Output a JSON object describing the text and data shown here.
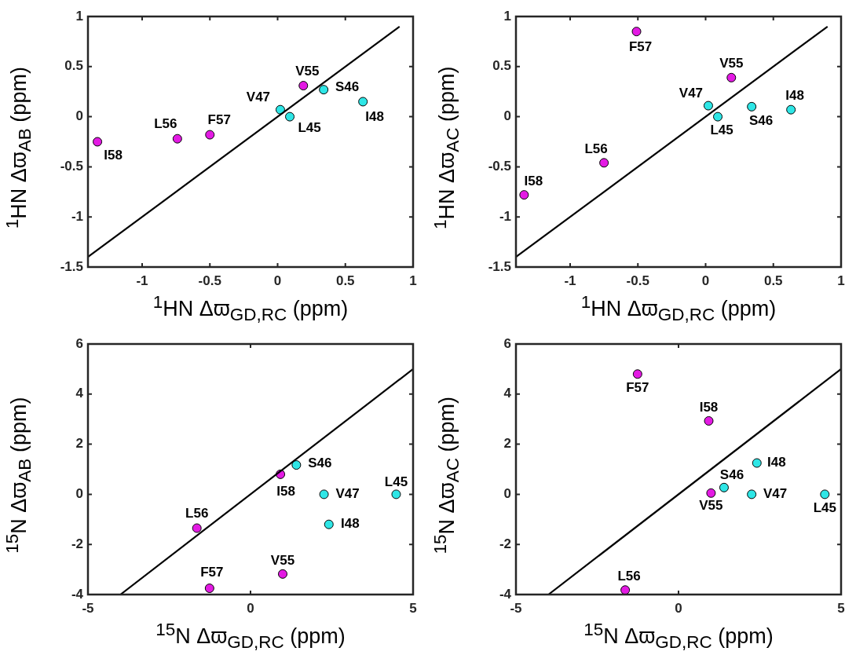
{
  "chart_data": [
    {
      "type": "scatter",
      "xlabel": "$^{1}$HN Δϖ$_{GD,RC}$ (ppm)",
      "ylabel": "$^{1}$HN Δϖ$_{AB}$ (ppm)",
      "xlim": [
        -1.4,
        1
      ],
      "xticks": [
        -1,
        -0.5,
        0,
        0.5,
        1
      ],
      "ylim": [
        -1.5,
        1
      ],
      "yticks": [
        -1.5,
        -1,
        -0.5,
        0,
        0.5,
        1
      ],
      "series": [
        {
          "marker": "circle",
          "color": "#2ee6e6",
          "x": [
            0.09,
            0.34,
            0.02,
            0.63
          ],
          "values": [
            0,
            0.27,
            0.07,
            0.15
          ]
        },
        {
          "marker": "circle",
          "color": "#e31ae3",
          "x": [
            0.19,
            -0.74,
            -0.5,
            -1.33
          ],
          "values": [
            0.31,
            -0.22,
            -0.18,
            -0.25
          ]
        },
        {
          "type": "line",
          "marker": "none",
          "color": "#000000",
          "x": [
            -1.4,
            0.9
          ],
          "values": [
            -1.4,
            0.9
          ]
        }
      ],
      "annotations": [
        {
          "text": "L45",
          "x": 0.09,
          "y": 0
        },
        {
          "text": "S46",
          "x": 0.34,
          "y": 0.27
        },
        {
          "text": "V47",
          "x": 0.02,
          "y": 0.07
        },
        {
          "text": "I48",
          "x": 0.63,
          "y": 0.15
        },
        {
          "text": "V55",
          "x": 0.19,
          "y": 0.31
        },
        {
          "text": "L56",
          "x": -0.74,
          "y": -0.22
        },
        {
          "text": "F57",
          "x": -0.5,
          "y": -0.18
        },
        {
          "text": "I58",
          "x": -1.33,
          "y": -0.25
        }
      ]
    },
    {
      "type": "scatter",
      "xlabel": "$^{1}$HN Δϖ$_{GD,RC}$ (ppm)",
      "ylabel": "$^{1}$HN Δϖ$_{AC}$ (ppm)",
      "xlim": [
        -1.4,
        1
      ],
      "xticks": [
        -1,
        -0.5,
        0,
        0.5,
        1
      ],
      "ylim": [
        -1.5,
        1
      ],
      "yticks": [
        -1.5,
        -1,
        -0.5,
        0,
        0.5,
        1
      ],
      "series": [
        {
          "marker": "circle",
          "color": "#2ee6e6",
          "x": [
            0.09,
            0.34,
            0.02,
            0.63
          ],
          "values": [
            0,
            0.1,
            0.11,
            0.07
          ]
        },
        {
          "marker": "circle",
          "color": "#e31ae3",
          "x": [
            0.19,
            -0.75,
            -0.51,
            -1.34
          ],
          "values": [
            0.39,
            -0.46,
            0.85,
            -0.78
          ]
        },
        {
          "type": "line",
          "marker": "none",
          "color": "#000000",
          "x": [
            -1.4,
            0.9
          ],
          "values": [
            -1.4,
            0.9
          ]
        }
      ],
      "annotations": [
        {
          "text": "L45",
          "x": 0.09,
          "y": 0
        },
        {
          "text": "S46",
          "x": 0.34,
          "y": 0.1
        },
        {
          "text": "V47",
          "x": 0.02,
          "y": 0.11
        },
        {
          "text": "I48",
          "x": 0.63,
          "y": 0.07
        },
        {
          "text": "V55",
          "x": 0.19,
          "y": 0.39
        },
        {
          "text": "L56",
          "x": -0.75,
          "y": -0.46
        },
        {
          "text": "F57",
          "x": -0.51,
          "y": 0.85
        },
        {
          "text": "I58",
          "x": -1.34,
          "y": -0.78
        }
      ]
    },
    {
      "type": "scatter",
      "xlabel": "$^{15}$N Δϖ$_{GD,RC}$ (ppm)",
      "ylabel": "$^{15}$N Δϖ$_{AB}$ (ppm)",
      "xlim": [
        -5,
        5
      ],
      "xticks": [
        -5,
        0,
        5
      ],
      "ylim": [
        -4,
        6
      ],
      "yticks": [
        -4,
        -2,
        0,
        2,
        4,
        6
      ],
      "series": [
        {
          "marker": "circle",
          "color": "#2ee6e6",
          "x": [
            4.48,
            1.41,
            2.26,
            2.41
          ],
          "values": [
            0,
            1.17,
            0,
            -1.2
          ]
        },
        {
          "marker": "circle",
          "color": "#e31ae3",
          "x": [
            0.99,
            -1.65,
            -1.26,
            0.92
          ],
          "values": [
            -3.18,
            -1.35,
            -3.75,
            0.8
          ]
        },
        {
          "type": "line",
          "marker": "none",
          "color": "#000000",
          "x": [
            -4,
            5
          ],
          "values": [
            -4,
            5
          ]
        }
      ],
      "annotations": [
        {
          "text": "L45",
          "x": 4.48,
          "y": 0
        },
        {
          "text": "S46",
          "x": 1.41,
          "y": 1.17
        },
        {
          "text": "V47",
          "x": 2.26,
          "y": 0
        },
        {
          "text": "I48",
          "x": 2.41,
          "y": -1.2
        },
        {
          "text": "V55",
          "x": 0.99,
          "y": -3.18
        },
        {
          "text": "L56",
          "x": -1.65,
          "y": -1.35
        },
        {
          "text": "F57",
          "x": -1.26,
          "y": -3.75
        },
        {
          "text": "I58",
          "x": 0.92,
          "y": 0.8
        }
      ]
    },
    {
      "type": "scatter",
      "xlabel": "$^{15}$N Δϖ$_{GD,RC}$ (ppm)",
      "ylabel": "$^{15}$N Δϖ$_{AC}$ (ppm)",
      "xlim": [
        -5,
        5
      ],
      "xticks": [
        -5,
        0,
        5
      ],
      "ylim": [
        -4,
        6
      ],
      "yticks": [
        -4,
        -2,
        0,
        2,
        4,
        6
      ],
      "series": [
        {
          "marker": "circle",
          "color": "#2ee6e6",
          "x": [
            4.5,
            1.4,
            2.25,
            2.41
          ],
          "values": [
            0,
            0.27,
            0,
            1.25
          ]
        },
        {
          "marker": "circle",
          "color": "#e31ae3",
          "x": [
            1,
            -1.64,
            -1.26,
            0.93
          ],
          "values": [
            0.05,
            -3.82,
            4.8,
            2.93
          ]
        },
        {
          "type": "line",
          "marker": "none",
          "color": "#000000",
          "x": [
            -4,
            5
          ],
          "values": [
            -4,
            5
          ]
        }
      ],
      "annotations": [
        {
          "text": "L45",
          "x": 4.5,
          "y": 0
        },
        {
          "text": "S46",
          "x": 1.4,
          "y": 0.27
        },
        {
          "text": "V47",
          "x": 2.25,
          "y": 0
        },
        {
          "text": "I48",
          "x": 2.41,
          "y": 1.25
        },
        {
          "text": "V55",
          "x": 1,
          "y": 0.05
        },
        {
          "text": "L56",
          "x": -1.64,
          "y": -3.82
        },
        {
          "text": "F57",
          "x": -1.26,
          "y": 4.8
        },
        {
          "text": "I58",
          "x": 0.93,
          "y": 2.93
        }
      ]
    }
  ]
}
